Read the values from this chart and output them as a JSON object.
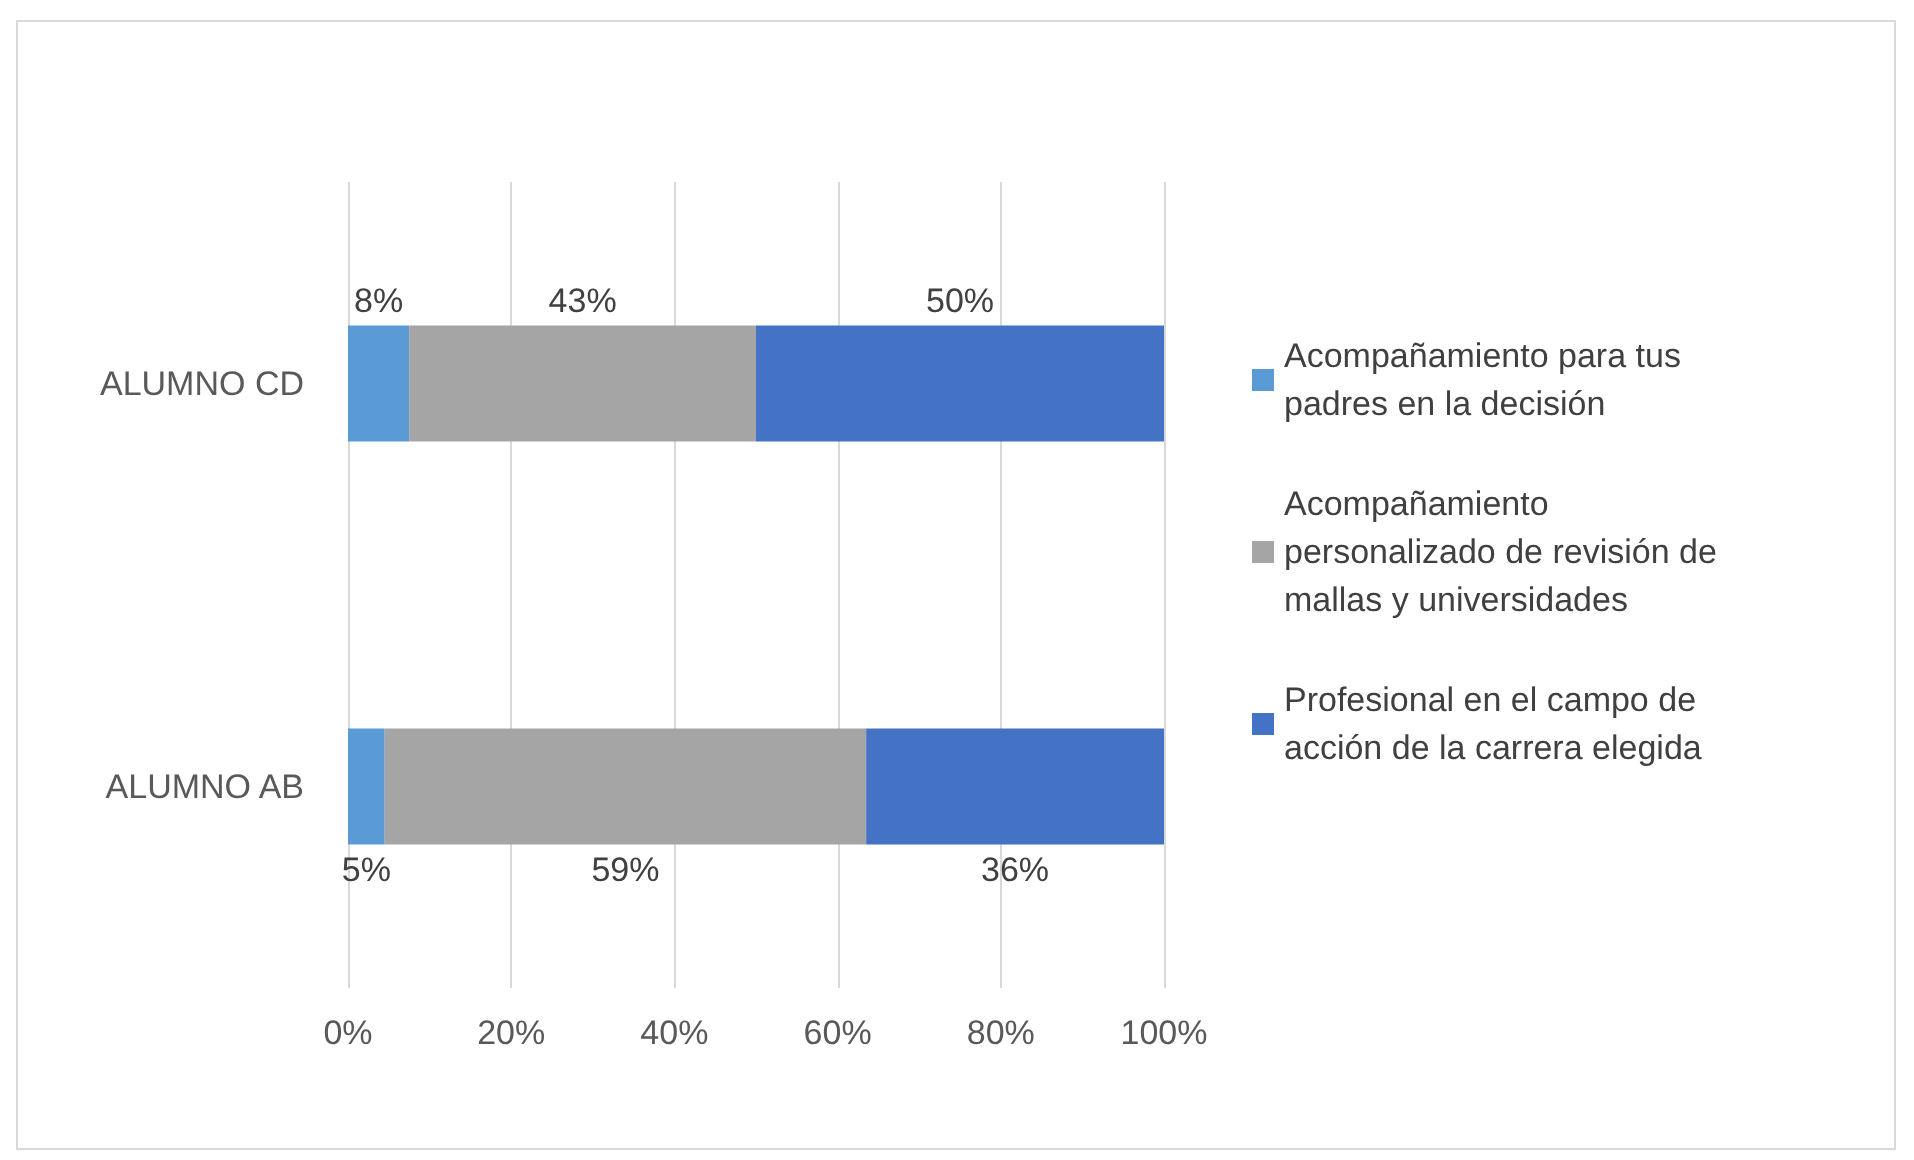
{
  "chart_data": {
    "type": "bar",
    "orientation": "horizontal",
    "stacked": true,
    "categories": [
      "ALUMNO CD",
      "ALUMNO AB"
    ],
    "series": [
      {
        "name": "Acompañamiento para tus padres en la decisión",
        "color": "#5b9bd5",
        "values": [
          7.5,
          4.5
        ],
        "value_labels": [
          "8%",
          "5%"
        ]
      },
      {
        "name": "Acompañamiento personalizado de revisión de mallas y universidades",
        "color": "#a5a5a5",
        "values": [
          42.5,
          59
        ],
        "value_labels": [
          "43%",
          "59%"
        ]
      },
      {
        "name": "Profesional en el campo de acción de la carrera elegida",
        "color": "#4472c4",
        "values": [
          50,
          36.5
        ],
        "value_labels": [
          "50%",
          "36%"
        ]
      }
    ],
    "xlim": [
      0,
      100
    ],
    "xticks": [
      {
        "value": 0,
        "label": "0%"
      },
      {
        "value": 20,
        "label": "20%"
      },
      {
        "value": 40,
        "label": "40%"
      },
      {
        "value": 60,
        "label": "60%"
      },
      {
        "value": 80,
        "label": "80%"
      },
      {
        "value": 100,
        "label": "100%"
      }
    ],
    "grid": "x",
    "legend": "right"
  }
}
